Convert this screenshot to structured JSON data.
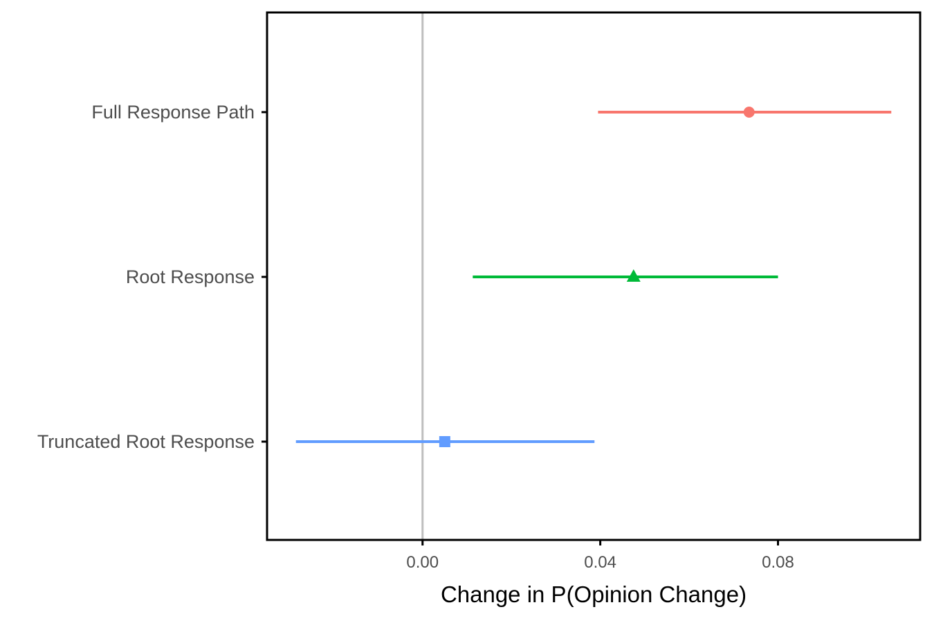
{
  "chart_data": {
    "type": "pointrange",
    "title": "",
    "xlabel": "Change in P(Opinion Change)",
    "ylabel": "",
    "xlim": [
      -0.035,
      0.112
    ],
    "xticks": [
      "0.00",
      "0.04",
      "0.08"
    ],
    "xtick_values": [
      0.0,
      0.04,
      0.08
    ],
    "reference_line": 0.0,
    "grid": false,
    "legend": "none",
    "categories": [
      "Full Response Path",
      "Root Response",
      "Truncated Root Response"
    ],
    "series": [
      {
        "category": "Full Response Path",
        "estimate": 0.0735,
        "lower": 0.0395,
        "upper": 0.1055,
        "color": "#F8766D",
        "marker": "circle"
      },
      {
        "category": "Root Response",
        "estimate": 0.0475,
        "lower": 0.0113,
        "upper": 0.08,
        "color": "#00BA38",
        "marker": "triangle"
      },
      {
        "category": "Truncated Root Response",
        "estimate": 0.005,
        "lower": -0.0285,
        "upper": 0.0387,
        "color": "#619CFF",
        "marker": "square"
      }
    ],
    "colors": {
      "reference_line": "#bebebe",
      "axis": "#000000",
      "tick_text": "#4d4d4d"
    }
  }
}
